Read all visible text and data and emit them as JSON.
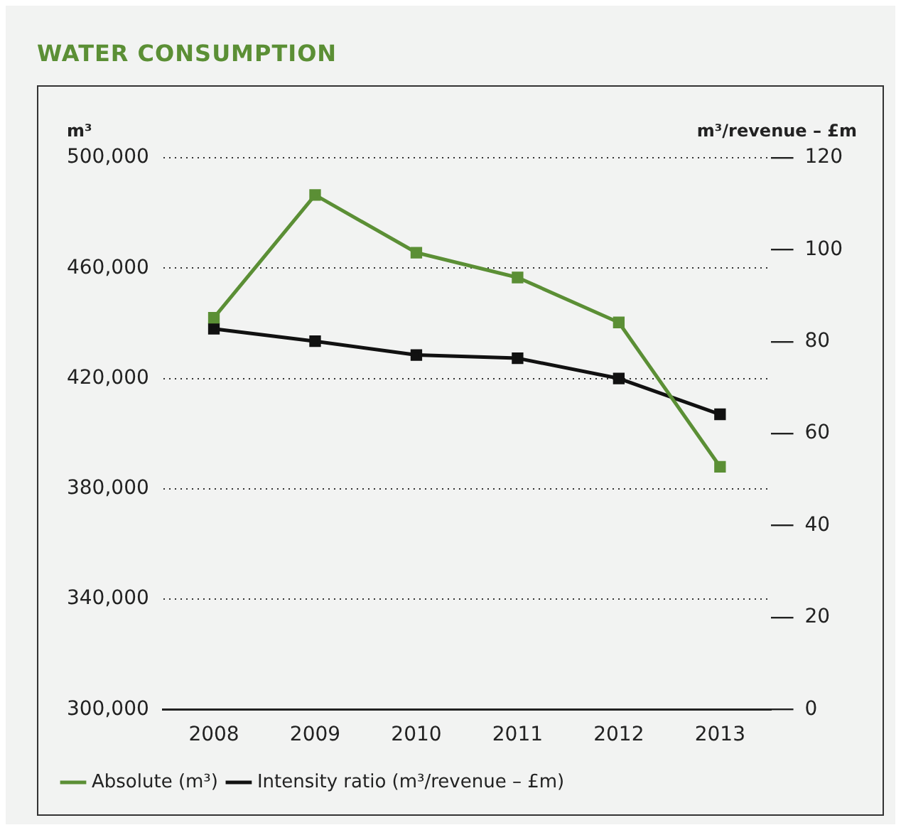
{
  "chart_data": {
    "type": "line",
    "title": "WATER CONSUMPTION",
    "ylabel": "m³",
    "y2label": "m³/revenue – £m",
    "categories": [
      "2008",
      "2009",
      "2010",
      "2011",
      "2012",
      "2013"
    ],
    "series": [
      {
        "name": "Absolute (m³)",
        "color": "#5b8f35",
        "values": [
          442000,
          486500,
          465600,
          456600,
          440300,
          388000
        ]
      },
      {
        "name": "Intensity ratio (m³/revenue – £m)",
        "color": "#111111",
        "axis": "y2",
        "values": [
          82.8,
          80.1,
          77.1,
          76.4,
          72,
          64.2
        ]
      }
    ],
    "ylim": [
      300000,
      500000
    ],
    "yticks": [
      {
        "value": 300000,
        "label": "300,000"
      },
      {
        "value": 340000,
        "label": "340,000"
      },
      {
        "value": 380000,
        "label": "380,000"
      },
      {
        "value": 420000,
        "label": "420,000"
      },
      {
        "value": 460000,
        "label": "460,000"
      },
      {
        "value": 500000,
        "label": "500,000"
      }
    ],
    "y2lim": [
      0,
      120
    ],
    "y2ticks": [
      0,
      20,
      40,
      60,
      80,
      100,
      120
    ],
    "grid": "y",
    "legend": "bottom",
    "marker": "square",
    "line_style": "solid"
  }
}
